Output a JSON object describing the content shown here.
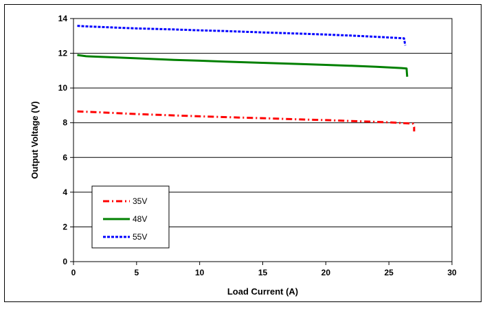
{
  "chart_data": {
    "type": "line",
    "title": "",
    "xlabel": "Load Current (A)",
    "ylabel": "Output Voltage (V)",
    "xlim": [
      0,
      30
    ],
    "ylim": [
      0,
      14
    ],
    "xticks": [
      0,
      5,
      10,
      15,
      20,
      25,
      30
    ],
    "yticks": [
      0,
      2,
      4,
      6,
      8,
      10,
      12,
      14
    ],
    "grid": "horizontal",
    "legend_position": "bottom-left",
    "series": [
      {
        "name": "35V",
        "color": "#ff0000",
        "line_style": "dash-dot",
        "x": [
          0.3,
          2,
          5,
          8,
          10,
          13,
          15,
          18,
          20,
          22,
          24,
          25,
          26,
          26.9,
          27.0,
          27.0
        ],
        "y": [
          8.65,
          8.6,
          8.5,
          8.42,
          8.37,
          8.3,
          8.26,
          8.19,
          8.15,
          8.1,
          8.05,
          8.02,
          7.98,
          7.95,
          7.75,
          7.5
        ]
      },
      {
        "name": "48V",
        "color": "#008000",
        "line_style": "solid",
        "x": [
          0.3,
          1,
          3,
          5,
          8,
          10,
          12,
          15,
          18,
          20,
          22,
          24,
          26,
          26.4,
          26.45
        ],
        "y": [
          11.9,
          11.83,
          11.77,
          11.71,
          11.62,
          11.57,
          11.52,
          11.45,
          11.38,
          11.33,
          11.28,
          11.22,
          11.15,
          11.12,
          10.65
        ]
      },
      {
        "name": "55V",
        "color": "#0000ff",
        "line_style": "dashed",
        "x": [
          0.3,
          1,
          3,
          5,
          8,
          10,
          12,
          15,
          18,
          20,
          22,
          24,
          26.2,
          26.3
        ],
        "y": [
          13.58,
          13.55,
          13.49,
          13.43,
          13.37,
          13.32,
          13.28,
          13.2,
          13.13,
          13.08,
          13.02,
          12.95,
          12.86,
          12.45
        ]
      }
    ]
  }
}
